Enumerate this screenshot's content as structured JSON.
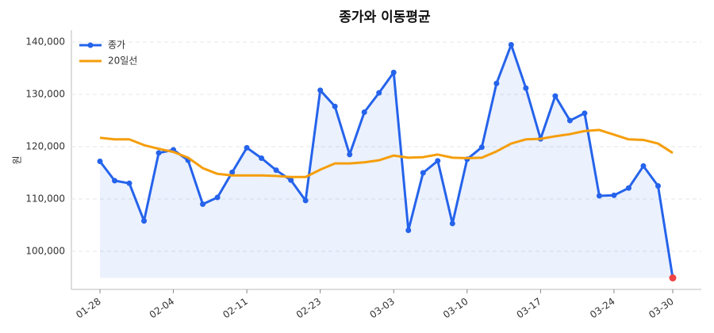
{
  "chart_data": {
    "type": "line",
    "title": "종가와 이동평균",
    "y_label": "원",
    "categories": [
      "01-28",
      null,
      null,
      null,
      null,
      "02-04",
      null,
      null,
      null,
      null,
      "02-11",
      null,
      null,
      null,
      null,
      "02-23",
      null,
      null,
      null,
      null,
      "03-03",
      null,
      null,
      null,
      null,
      "03-10",
      null,
      null,
      null,
      null,
      "03-17",
      null,
      null,
      null,
      null,
      "03-24",
      null,
      null,
      null,
      "03-30"
    ],
    "series": [
      {
        "name": "종가",
        "color": "#2563eb",
        "markers": true,
        "fill": true,
        "last_point_color": "#ef4444",
        "values": [
          117200,
          113500,
          113000,
          105800,
          118800,
          119400,
          117400,
          109000,
          110300,
          115100,
          119800,
          117800,
          115500,
          113600,
          109700,
          130800,
          127700,
          118500,
          126600,
          130300,
          134200,
          104000,
          115000,
          117300,
          105300,
          117600,
          119900,
          132100,
          139500,
          131200,
          121500,
          129700,
          125000,
          126400,
          110600,
          110700,
          112100,
          116300,
          112500,
          94900
        ]
      },
      {
        "name": "20일선",
        "color": "#f59e0b",
        "markers": false,
        "fill": false,
        "values": [
          121700,
          121400,
          121400,
          120300,
          119600,
          119000,
          117900,
          115900,
          114800,
          114500,
          114500,
          114500,
          114400,
          114200,
          114200,
          115600,
          116800,
          116800,
          117000,
          117400,
          118300,
          117900,
          118000,
          118500,
          117900,
          117800,
          117900,
          119100,
          120600,
          121400,
          121500,
          122000,
          122400,
          123000,
          123200,
          122300,
          121400,
          121300,
          120600,
          118800
        ]
      }
    ],
    "ylim": [
      92700,
      142300
    ],
    "yticks": [
      {
        "value": 100000,
        "label": "100,000"
      },
      {
        "value": 110000,
        "label": "110,000"
      },
      {
        "value": 120000,
        "label": "120,000"
      },
      {
        "value": 130000,
        "label": "130,000"
      },
      {
        "value": 140000,
        "label": "140,000"
      }
    ],
    "grid": true,
    "legend": "top-left"
  }
}
